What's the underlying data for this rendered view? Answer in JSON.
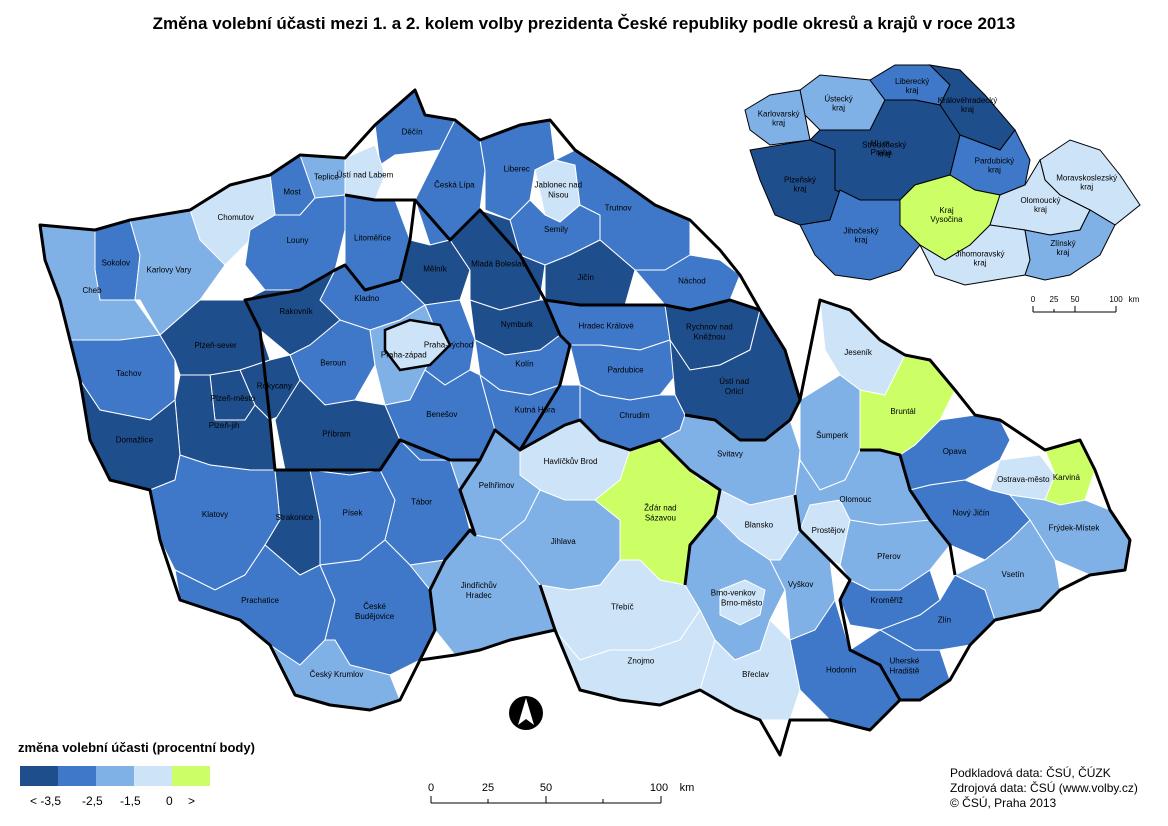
{
  "title": "Změna volební účasti mezi 1. a  2. kolem volby prezidenta České republiky podle okresů a krajů v roce 2013",
  "colors": {
    "c1": "#1f4e8c",
    "c2": "#3f78c8",
    "c3": "#7fb0e6",
    "c4": "#cde3f7",
    "c5": "#ccff66",
    "border": "#000000",
    "inner": "#ffffff"
  },
  "legend": {
    "title": "změna volební účasti (procentní body)",
    "labels": [
      "< -3,5",
      "-2,5",
      "-1,5",
      "0",
      ">"
    ]
  },
  "scale": {
    "ticks": [
      "0",
      "25",
      "50",
      "100"
    ],
    "unit": "km"
  },
  "inset_scale": {
    "ticks": [
      "0",
      "25",
      "50",
      "100"
    ],
    "unit": "km"
  },
  "source": {
    "line1": "Podkladová data: ČSÚ, ČÚZK",
    "line2": "Zdrojová data: ČSÚ (www.volby.cz)",
    "line3": "© ČSÚ, Praha 2013"
  },
  "districts": [
    {
      "name": "Děčín",
      "cls": "c2"
    },
    {
      "name": "Ústí nad Labem",
      "cls": "c4"
    },
    {
      "name": "Teplice",
      "cls": "c3"
    },
    {
      "name": "Most",
      "cls": "c2"
    },
    {
      "name": "Chomutov",
      "cls": "c4"
    },
    {
      "name": "Sokolov",
      "cls": "c2"
    },
    {
      "name": "Karlovy Vary",
      "cls": "c3"
    },
    {
      "name": "Cheb",
      "cls": "c3"
    },
    {
      "name": "Louny",
      "cls": "c2"
    },
    {
      "name": "Litoměřice",
      "cls": "c2"
    },
    {
      "name": "Česká Lípa",
      "cls": "c2"
    },
    {
      "name": "Liberec",
      "cls": "c2"
    },
    {
      "name": "Jablonec nad Nisou",
      "cls": "c4"
    },
    {
      "name": "Semily",
      "cls": "c2"
    },
    {
      "name": "Trutnov",
      "cls": "c2"
    },
    {
      "name": "Mělník",
      "cls": "c1"
    },
    {
      "name": "Mladá Boleslav",
      "cls": "c1"
    },
    {
      "name": "Jičín",
      "cls": "c1"
    },
    {
      "name": "Náchod",
      "cls": "c2"
    },
    {
      "name": "Kladno",
      "cls": "c2"
    },
    {
      "name": "Rakovník",
      "cls": "c1"
    },
    {
      "name": "Nymburk",
      "cls": "c1"
    },
    {
      "name": "Hradec Králové",
      "cls": "c2"
    },
    {
      "name": "Rychnov nad Kněžnou",
      "cls": "c1"
    },
    {
      "name": "Tachov",
      "cls": "c2"
    },
    {
      "name": "Plzeň-sever",
      "cls": "c1"
    },
    {
      "name": "Rokycany",
      "cls": "c1"
    },
    {
      "name": "Plzeň-město",
      "cls": "c1"
    },
    {
      "name": "Plzeň-jih",
      "cls": "c1"
    },
    {
      "name": "Domažlice",
      "cls": "c1"
    },
    {
      "name": "Beroun",
      "cls": "c2"
    },
    {
      "name": "Praha-západ",
      "cls": "c3"
    },
    {
      "name": "Praha-východ",
      "cls": "c2"
    },
    {
      "name": "Kolín",
      "cls": "c2"
    },
    {
      "name": "Pardubice",
      "cls": "c2"
    },
    {
      "name": "Ústí nad Orlicí",
      "cls": "c1"
    },
    {
      "name": "Příbram",
      "cls": "c1"
    },
    {
      "name": "Benešov",
      "cls": "c2"
    },
    {
      "name": "Kutná Hora",
      "cls": "c2"
    },
    {
      "name": "Chrudim",
      "cls": "c2"
    },
    {
      "name": "Svitavy",
      "cls": "c3"
    },
    {
      "name": "Havlíčkův Brod",
      "cls": "c4"
    },
    {
      "name": "Klatovy",
      "cls": "c2"
    },
    {
      "name": "Strakonice",
      "cls": "c1"
    },
    {
      "name": "Písek",
      "cls": "c2"
    },
    {
      "name": "Tábor",
      "cls": "c2"
    },
    {
      "name": "Pelhřimov",
      "cls": "c3"
    },
    {
      "name": "Jihlava",
      "cls": "c3"
    },
    {
      "name": "Žďár nad Sázavou",
      "cls": "c5"
    },
    {
      "name": "Prachatice",
      "cls": "c2"
    },
    {
      "name": "České Budějovice",
      "cls": "c2"
    },
    {
      "name": "Jindřichův Hradec",
      "cls": "c3"
    },
    {
      "name": "Český Krumlov",
      "cls": "c3"
    },
    {
      "name": "Třebíč",
      "cls": "c4"
    },
    {
      "name": "Znojmo",
      "cls": "c4"
    },
    {
      "name": "Brno-venkov",
      "cls": "c3"
    },
    {
      "name": "Brno-město",
      "cls": "c4"
    },
    {
      "name": "Blansko",
      "cls": "c4"
    },
    {
      "name": "Vyškov",
      "cls": "c3"
    },
    {
      "name": "Břeclav",
      "cls": "c4"
    },
    {
      "name": "Hodonín",
      "cls": "c2"
    },
    {
      "name": "Jeseník",
      "cls": "c4"
    },
    {
      "name": "Šumperk",
      "cls": "c3"
    },
    {
      "name": "Bruntál",
      "cls": "c5"
    },
    {
      "name": "Olomouc",
      "cls": "c3"
    },
    {
      "name": "Prostějov",
      "cls": "c4"
    },
    {
      "name": "Přerov",
      "cls": "c3"
    },
    {
      "name": "Opava",
      "cls": "c2"
    },
    {
      "name": "Ostrava-město",
      "cls": "c4"
    },
    {
      "name": "Karviná",
      "cls": "c5"
    },
    {
      "name": "Nový Jičín",
      "cls": "c2"
    },
    {
      "name": "Frýdek-Místek",
      "cls": "c3"
    },
    {
      "name": "Kroměříž",
      "cls": "c2"
    },
    {
      "name": "Zlín",
      "cls": "c2"
    },
    {
      "name": "Uherské Hradiště",
      "cls": "c2"
    },
    {
      "name": "Vsetín",
      "cls": "c3"
    }
  ],
  "regions": [
    {
      "name": "Ústecký kraj",
      "cls": "c3"
    },
    {
      "name": "Liberecký kraj",
      "cls": "c2"
    },
    {
      "name": "Karlovarský kraj",
      "cls": "c3"
    },
    {
      "name": "Královéhradecký kraj",
      "cls": "c1"
    },
    {
      "name": "Hl. m. Praha",
      "cls": "c4"
    },
    {
      "name": "Plzeňský kraj",
      "cls": "c1"
    },
    {
      "name": "Středočeský kraj",
      "cls": "c1"
    },
    {
      "name": "Pardubický kraj",
      "cls": "c2"
    },
    {
      "name": "Moravskoslezský kraj",
      "cls": "c4"
    },
    {
      "name": "Kraj Vysočina",
      "cls": "c5"
    },
    {
      "name": "Olomoucký kraj",
      "cls": "c4"
    },
    {
      "name": "Jihočeský kraj",
      "cls": "c2"
    },
    {
      "name": "Jihomoravský kraj",
      "cls": "c4"
    },
    {
      "name": "Zlínský kraj",
      "cls": "c3"
    }
  ],
  "prague_label": ""
}
